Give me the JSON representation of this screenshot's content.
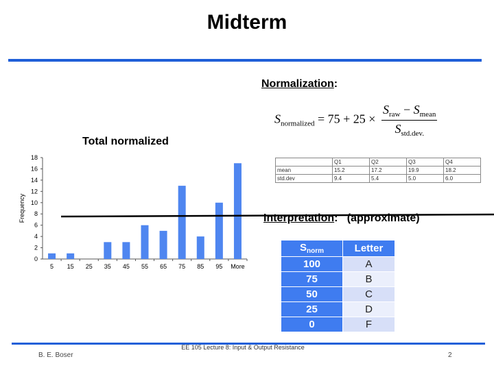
{
  "title": "Midterm",
  "normalization": {
    "heading": "Normalization",
    "colon": ":",
    "formula": {
      "S": "S",
      "sub_normalized": "normalized",
      "rhs": "= 75 + 25 ×",
      "sub_raw": "raw",
      "minus": " − ",
      "sub_mean": "mean",
      "sub_stddev": "std.dev."
    }
  },
  "stats_table": {
    "headers": [
      "",
      "Q1",
      "Q2",
      "Q3",
      "Q4"
    ],
    "rows": [
      [
        "mean",
        "15.2",
        "17.2",
        "19.9",
        "18.2"
      ],
      [
        "std.dev",
        "9.4",
        "5.4",
        "5.0",
        "6.0"
      ]
    ]
  },
  "interpretation": {
    "heading": "Interpretation",
    "colon": ":",
    "note": "(approximate)"
  },
  "grade_table": {
    "header_key": "S",
    "header_key_sub": "norm",
    "header_value": "Letter",
    "rows": [
      {
        "snorm": "100",
        "letter": "A"
      },
      {
        "snorm": "75",
        "letter": "B"
      },
      {
        "snorm": "50",
        "letter": "C"
      },
      {
        "snorm": "25",
        "letter": "D"
      },
      {
        "snorm": "0",
        "letter": "F"
      }
    ]
  },
  "chart_data": {
    "type": "bar",
    "title": "Total normalized",
    "xlabel": "",
    "ylabel": "Frequency",
    "categories": [
      "5",
      "15",
      "25",
      "35",
      "45",
      "55",
      "65",
      "75",
      "85",
      "95",
      "More"
    ],
    "values": [
      1,
      1,
      0,
      3,
      3,
      6,
      5,
      13,
      4,
      10,
      17
    ],
    "ylim": [
      0,
      18
    ],
    "yticks": [
      0,
      2,
      4,
      6,
      8,
      10,
      12,
      14,
      16,
      18
    ],
    "grid": false,
    "bar_color": "#4f86f0"
  },
  "footer": {
    "center": "EE 105 Lecture 8: Input & Output Resistance",
    "left": "B. E. Boser",
    "page": "2"
  },
  "colors": {
    "accent_rule": "#1f5fd8",
    "table_header": "#3f7cf0"
  }
}
